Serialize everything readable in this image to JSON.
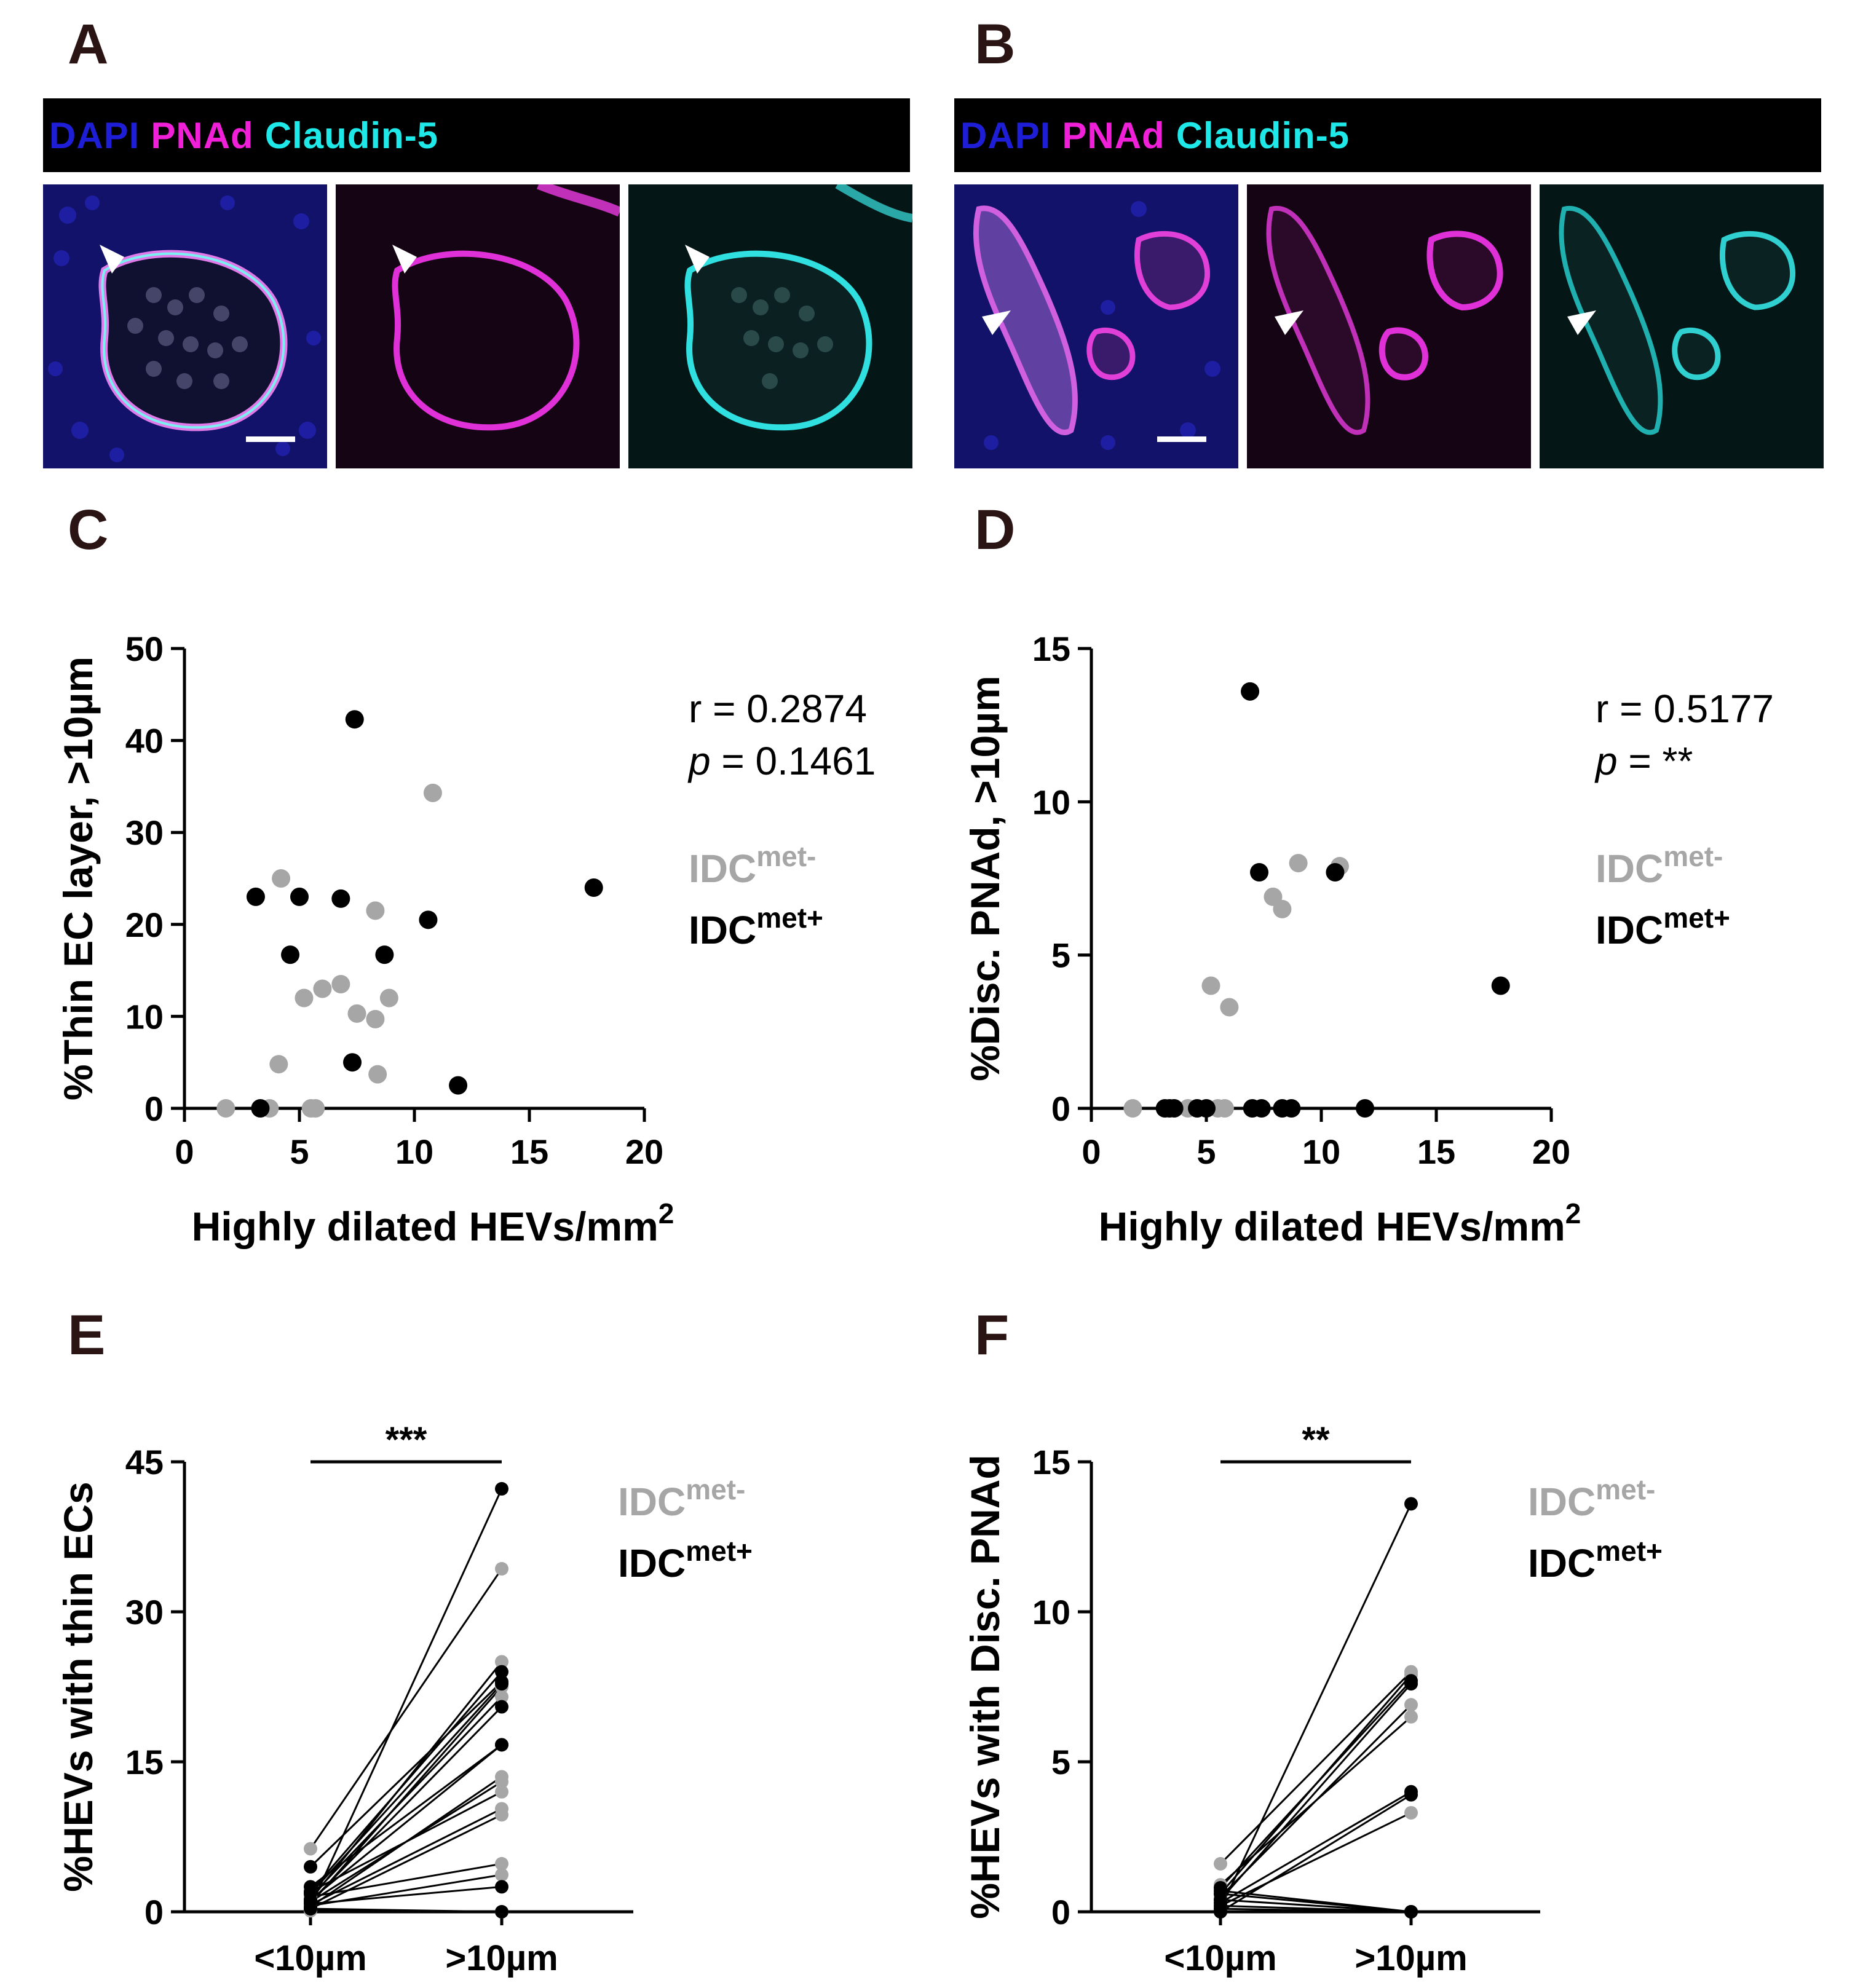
{
  "panels": {
    "A": {
      "letter": "A",
      "stain": {
        "dapi": "DAPI",
        "pnad": "PNAd",
        "claudin": "Claudin-5"
      }
    },
    "B": {
      "letter": "B",
      "stain": {
        "dapi": "DAPI",
        "pnad": "PNAd",
        "claudin": "Claudin-5"
      }
    },
    "C": {
      "letter": "C"
    },
    "D": {
      "letter": "D"
    },
    "E": {
      "letter": "E"
    },
    "F": {
      "letter": "F"
    }
  },
  "colors": {
    "dapi": "#1e1ed6",
    "pnad": "#f020d8",
    "claudin": "#1ee8e8",
    "idc_met_neg": "#a6a6a6",
    "idc_met_pos": "#000000"
  },
  "icons": {
    "arrowhead": "arrowhead-marker-icon",
    "scale_bar": "scale-bar"
  },
  "legend": {
    "neg": {
      "base": "IDC",
      "sup": "met-"
    },
    "pos": {
      "base": "IDC",
      "sup": "met+"
    }
  },
  "chart_data": [
    {
      "panel": "C",
      "type": "scatter",
      "xlabel": "Highly dilated HEVs/mm",
      "xlabel_sup": "2",
      "ylabel": "%Thin EC layer, >10µm",
      "xlim": [
        0,
        20
      ],
      "ylim": [
        0,
        50
      ],
      "xticks": [
        0,
        5,
        10,
        15,
        20
      ],
      "yticks": [
        0,
        10,
        20,
        30,
        40,
        50
      ],
      "stats": {
        "r_label": "r = 0.2874",
        "p_sym": "p",
        "p_rest": " = 0.1461"
      },
      "series": [
        {
          "name": "IDCmet-",
          "color": "#a6a6a6",
          "points": [
            [
              1.8,
              0
            ],
            [
              3.7,
              0
            ],
            [
              4.1,
              4.8
            ],
            [
              4.2,
              25
            ],
            [
              5.2,
              12
            ],
            [
              5.5,
              0
            ],
            [
              5.7,
              0
            ],
            [
              6.0,
              13
            ],
            [
              6.8,
              13.5
            ],
            [
              7.5,
              10.3
            ],
            [
              8.3,
              21.5
            ],
            [
              8.3,
              9.7
            ],
            [
              8.4,
              3.7
            ],
            [
              8.9,
              12
            ],
            [
              10.8,
              34.3
            ]
          ]
        },
        {
          "name": "IDCmet+",
          "color": "#000000",
          "points": [
            [
              3.1,
              23
            ],
            [
              3.3,
              0
            ],
            [
              4.6,
              16.7
            ],
            [
              5.0,
              23
            ],
            [
              6.8,
              22.8
            ],
            [
              7.3,
              5
            ],
            [
              7.4,
              42.3
            ],
            [
              8.7,
              16.7
            ],
            [
              10.6,
              20.5
            ],
            [
              11.9,
              2.5
            ],
            [
              17.8,
              24
            ]
          ]
        }
      ]
    },
    {
      "panel": "D",
      "type": "scatter",
      "xlabel": "Highly dilated HEVs/mm",
      "xlabel_sup": "2",
      "ylabel": "%Disc. PNAd, >10µm",
      "xlim": [
        0,
        20
      ],
      "ylim": [
        0,
        15
      ],
      "xticks": [
        0,
        5,
        10,
        15,
        20
      ],
      "yticks": [
        0,
        5,
        10,
        15
      ],
      "stats": {
        "r_label": "r = 0.5177",
        "p_sym": "p",
        "p_rest": " = **"
      },
      "series": [
        {
          "name": "IDCmet-",
          "color": "#a6a6a6",
          "points": [
            [
              1.8,
              0
            ],
            [
              4.2,
              0
            ],
            [
              4.6,
              0
            ],
            [
              5.2,
              4
            ],
            [
              5.5,
              0
            ],
            [
              5.8,
              0
            ],
            [
              6.0,
              3.3
            ],
            [
              7.9,
              6.9
            ],
            [
              8.3,
              6.5
            ],
            [
              9.0,
              8
            ],
            [
              10.8,
              7.9
            ]
          ]
        },
        {
          "name": "IDCmet+",
          "color": "#000000",
          "points": [
            [
              3.2,
              0
            ],
            [
              3.4,
              0
            ],
            [
              3.6,
              0
            ],
            [
              4.6,
              0
            ],
            [
              5.0,
              0
            ],
            [
              6.9,
              13.6
            ],
            [
              7.0,
              0
            ],
            [
              7.3,
              7.7
            ],
            [
              7.4,
              0
            ],
            [
              8.3,
              0
            ],
            [
              8.7,
              0
            ],
            [
              10.6,
              7.7
            ],
            [
              11.9,
              0
            ],
            [
              17.8,
              4
            ]
          ]
        }
      ]
    },
    {
      "panel": "E",
      "type": "line",
      "categories": [
        "<10µm",
        ">10µm"
      ],
      "ylabel": "%HEVs with thin ECs",
      "ylim": [
        0,
        45
      ],
      "yticks": [
        0,
        15,
        30,
        45
      ],
      "significance": "***",
      "series": [
        {
          "name": "IDCmet-",
          "color": "#a6a6a6",
          "pairs": [
            [
              6.3,
              34.3
            ],
            [
              1.2,
              25
            ],
            [
              0.8,
              22.5
            ],
            [
              1.5,
              21.5
            ],
            [
              0.5,
              13.5
            ],
            [
              1.0,
              13
            ],
            [
              2.0,
              12
            ],
            [
              0.7,
              10.3
            ],
            [
              0.3,
              9.7
            ],
            [
              1.5,
              4.8
            ],
            [
              0.6,
              3.7
            ],
            [
              0.2,
              0
            ],
            [
              0.1,
              0
            ]
          ]
        },
        {
          "name": "IDCmet+",
          "color": "#000000",
          "pairs": [
            [
              0.5,
              42.3
            ],
            [
              2.0,
              24
            ],
            [
              4.5,
              23
            ],
            [
              1.8,
              22.8
            ],
            [
              1.0,
              20.5
            ],
            [
              2.5,
              16.7
            ],
            [
              1.2,
              16.7
            ],
            [
              0.8,
              2.5
            ],
            [
              0.3,
              0
            ]
          ]
        }
      ]
    },
    {
      "panel": "F",
      "type": "line",
      "categories": [
        "<10µm",
        ">10µm"
      ],
      "ylabel": "%HEVs with Disc. PNAd",
      "ylim": [
        0,
        15
      ],
      "yticks": [
        0,
        5,
        10,
        15
      ],
      "significance": "**",
      "series": [
        {
          "name": "IDCmet-",
          "color": "#a6a6a6",
          "pairs": [
            [
              1.6,
              8
            ],
            [
              0.6,
              7.9
            ],
            [
              0.5,
              6.9
            ],
            [
              0.9,
              6.5
            ],
            [
              0.2,
              3.3
            ],
            [
              0.1,
              0
            ],
            [
              0.4,
              0
            ]
          ]
        },
        {
          "name": "IDCmet+",
          "color": "#000000",
          "pairs": [
            [
              0.1,
              13.6
            ],
            [
              0.8,
              7.7
            ],
            [
              0.4,
              7.6
            ],
            [
              0.3,
              4
            ],
            [
              0.0,
              3.9
            ],
            [
              0.6,
              0
            ],
            [
              0.2,
              0
            ],
            [
              0.7,
              0
            ],
            [
              0.0,
              0
            ]
          ]
        }
      ]
    }
  ]
}
